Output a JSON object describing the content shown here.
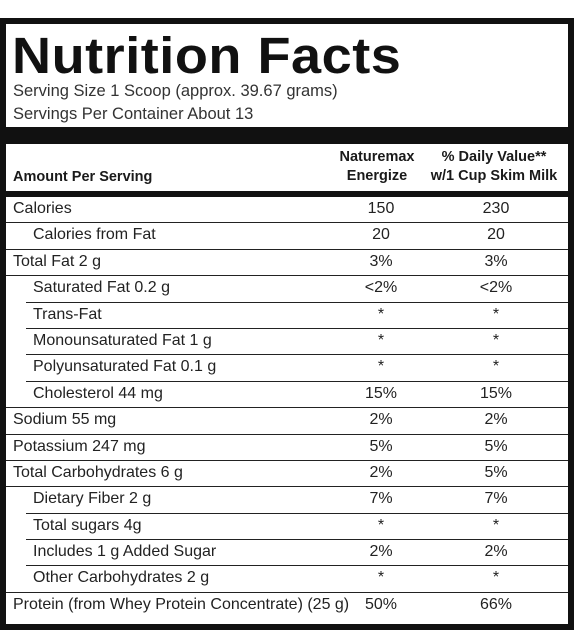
{
  "title": "Nutrition Facts",
  "serving_size": "Serving Size 1 Scoop (approx. 39.67 grams)",
  "servings_per_container": "Servings Per Container About 13",
  "header": {
    "amount_per_serving": "Amount Per Serving",
    "col1_line1": "Naturemax",
    "col1_line2": "Energize",
    "col2_line1": "% Daily Value**",
    "col2_line2": "w/1 Cup Skim Milk"
  },
  "rows": [
    {
      "name": "Calories",
      "v1": "150",
      "v2": "230"
    },
    {
      "name": "Calories from Fat",
      "v1": "20",
      "v2": "20"
    },
    {
      "name": "Total Fat  2 g",
      "v1": "3%",
      "v2": "3%"
    },
    {
      "name": "Saturated Fat  0.2 g",
      "v1": "<2%",
      "v2": "<2%"
    },
    {
      "name": "Trans-Fat",
      "v1": "*",
      "v2": "*"
    },
    {
      "name": "Monounsaturated Fat  1 g",
      "v1": "*",
      "v2": "*"
    },
    {
      "name": "Polyunsaturated Fat  0.1 g",
      "v1": "*",
      "v2": "*"
    },
    {
      "name": "Cholesterol  44 mg",
      "v1": "15%",
      "v2": "15%"
    },
    {
      "name": "Sodium  55 mg",
      "v1": "2%",
      "v2": "2%"
    },
    {
      "name": "Potassium  247 mg",
      "v1": "5%",
      "v2": "5%"
    },
    {
      "name": "Total Carbohydrates  6 g",
      "v1": "2%",
      "v2": "5%"
    },
    {
      "name": "Dietary Fiber  2 g",
      "v1": "7%",
      "v2": "7%"
    },
    {
      "name": "Total sugars 4g",
      "v1": "*",
      "v2": "*"
    },
    {
      "name": "Includes 1 g Added Sugar",
      "v1": "2%",
      "v2": "2%"
    },
    {
      "name": "Other Carbohydrates  2 g",
      "v1": "*",
      "v2": "*"
    },
    {
      "name": "Protein (from Whey Protein Concentrate) (25 g)",
      "v1": "50%",
      "v2": "66%"
    }
  ]
}
